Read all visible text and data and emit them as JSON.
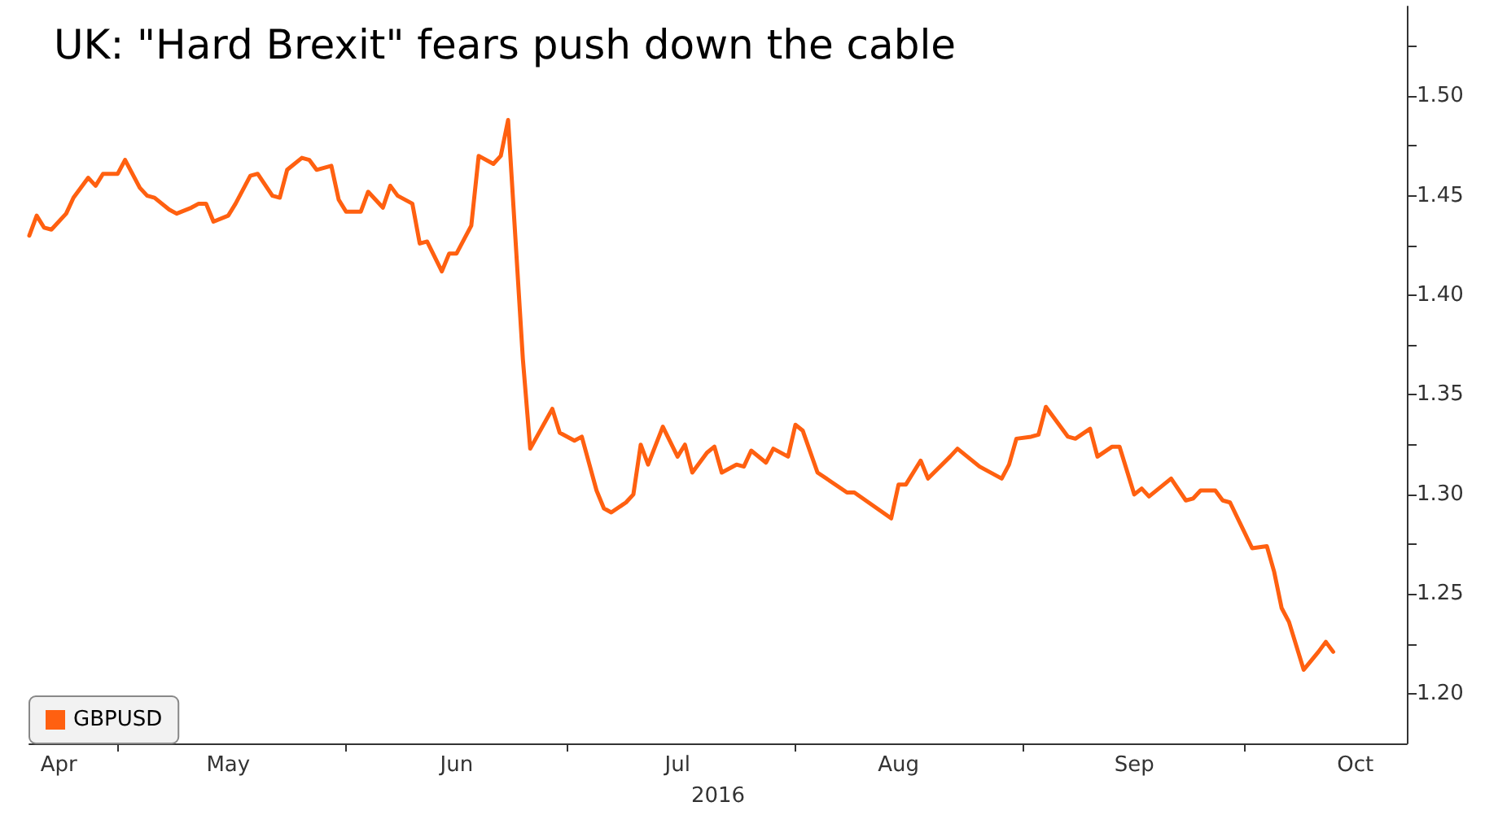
{
  "chart_data": {
    "type": "line",
    "title": "UK: \"Hard Brexit\" fears push down the cable",
    "xlabel": "2016",
    "x": [
      "2016-04-19",
      "2016-04-20",
      "2016-04-21",
      "2016-04-22",
      "2016-04-24",
      "2016-04-25",
      "2016-04-27",
      "2016-04-28",
      "2016-04-29",
      "2016-05-01",
      "2016-05-02",
      "2016-05-04",
      "2016-05-05",
      "2016-05-06",
      "2016-05-08",
      "2016-05-09",
      "2016-05-11",
      "2016-05-12",
      "2016-05-13",
      "2016-05-14",
      "2016-05-16",
      "2016-05-17",
      "2016-05-19",
      "2016-05-20",
      "2016-05-22",
      "2016-05-23",
      "2016-05-24",
      "2016-05-26",
      "2016-05-27",
      "2016-05-28",
      "2016-05-30",
      "2016-05-31",
      "2016-06-01",
      "2016-06-03",
      "2016-06-04",
      "2016-06-06",
      "2016-06-07",
      "2016-06-08",
      "2016-06-10",
      "2016-06-11",
      "2016-06-12",
      "2016-06-14",
      "2016-06-15",
      "2016-06-16",
      "2016-06-18",
      "2016-06-19",
      "2016-06-21",
      "2016-06-22",
      "2016-06-23",
      "2016-06-25",
      "2016-06-26",
      "2016-06-29",
      "2016-06-30",
      "2016-07-02",
      "2016-07-03",
      "2016-07-05",
      "2016-07-06",
      "2016-07-07",
      "2016-07-09",
      "2016-07-10",
      "2016-07-11",
      "2016-07-12",
      "2016-07-14",
      "2016-07-16",
      "2016-07-17",
      "2016-07-18",
      "2016-07-20",
      "2016-07-21",
      "2016-07-22",
      "2016-07-24",
      "2016-07-25",
      "2016-07-26",
      "2016-07-28",
      "2016-07-29",
      "2016-07-31",
      "2016-08-01",
      "2016-08-02",
      "2016-08-04",
      "2016-08-06",
      "2016-08-08",
      "2016-08-09",
      "2016-08-14",
      "2016-08-15",
      "2016-08-16",
      "2016-08-18",
      "2016-08-19",
      "2016-08-22",
      "2016-08-23",
      "2016-08-26",
      "2016-08-29",
      "2016-08-30",
      "2016-08-31",
      "2016-09-02",
      "2016-09-03",
      "2016-09-04",
      "2016-09-06",
      "2016-09-07",
      "2016-09-08",
      "2016-09-10",
      "2016-09-11",
      "2016-09-13",
      "2016-09-14",
      "2016-09-16",
      "2016-09-17",
      "2016-09-18",
      "2016-09-21",
      "2016-09-23",
      "2016-09-24",
      "2016-09-25",
      "2016-09-27",
      "2016-09-28",
      "2016-09-29",
      "2016-10-02",
      "2016-10-04",
      "2016-10-05",
      "2016-10-06",
      "2016-10-07",
      "2016-10-09",
      "2016-10-11",
      "2016-10-12",
      "2016-10-13"
    ],
    "series": [
      {
        "name": "GBPUSD",
        "color": "#ff6010",
        "values": [
          1.43,
          1.44,
          1.434,
          1.433,
          1.441,
          1.449,
          1.459,
          1.455,
          1.461,
          1.461,
          1.468,
          1.454,
          1.45,
          1.449,
          1.443,
          1.441,
          1.444,
          1.446,
          1.446,
          1.437,
          1.44,
          1.446,
          1.46,
          1.461,
          1.45,
          1.449,
          1.463,
          1.469,
          1.468,
          1.463,
          1.465,
          1.448,
          1.442,
          1.442,
          1.452,
          1.444,
          1.455,
          1.45,
          1.446,
          1.426,
          1.427,
          1.412,
          1.421,
          1.421,
          1.435,
          1.47,
          1.466,
          1.47,
          1.488,
          1.368,
          1.323,
          1.343,
          1.331,
          1.327,
          1.329,
          1.302,
          1.293,
          1.291,
          1.296,
          1.3,
          1.325,
          1.315,
          1.334,
          1.319,
          1.325,
          1.311,
          1.321,
          1.324,
          1.311,
          1.315,
          1.314,
          1.322,
          1.316,
          1.323,
          1.319,
          1.335,
          1.332,
          1.311,
          1.306,
          1.301,
          1.301,
          1.288,
          1.305,
          1.305,
          1.317,
          1.308,
          1.319,
          1.323,
          1.314,
          1.308,
          1.315,
          1.328,
          1.329,
          1.33,
          1.344,
          1.334,
          1.329,
          1.328,
          1.333,
          1.319,
          1.324,
          1.324,
          1.3,
          1.303,
          1.299,
          1.308,
          1.297,
          1.298,
          1.302,
          1.302,
          1.297,
          1.296,
          1.273,
          1.274,
          1.261,
          1.243,
          1.236,
          1.212,
          1.221,
          1.226,
          1.221
        ]
      }
    ],
    "xlim": [
      "2016-04-19",
      "2016-10-23"
    ],
    "xticks": [
      {
        "value": "2016-04-23",
        "label": "Apr"
      },
      {
        "value": "2016-05-01",
        "label": null
      },
      {
        "value": "2016-05-16",
        "label": "May"
      },
      {
        "value": "2016-06-01",
        "label": null
      },
      {
        "value": "2016-06-16",
        "label": "Jun"
      },
      {
        "value": "2016-07-01",
        "label": null
      },
      {
        "value": "2016-07-16",
        "label": "Jul"
      },
      {
        "value": "2016-08-01",
        "label": null
      },
      {
        "value": "2016-08-15",
        "label": "Aug"
      },
      {
        "value": "2016-09-01",
        "label": null
      },
      {
        "value": "2016-09-16",
        "label": "Sep"
      },
      {
        "value": "2016-10-01",
        "label": null
      },
      {
        "value": "2016-10-16",
        "label": "Oct"
      }
    ],
    "ylim": [
      1.175,
      1.545
    ],
    "yticks": [
      {
        "value": 1.2,
        "label": "1.20"
      },
      {
        "value": 1.225,
        "label": null
      },
      {
        "value": 1.25,
        "label": "1.25"
      },
      {
        "value": 1.275,
        "label": null
      },
      {
        "value": 1.3,
        "label": "1.30"
      },
      {
        "value": 1.325,
        "label": null
      },
      {
        "value": 1.35,
        "label": "1.35"
      },
      {
        "value": 1.375,
        "label": null
      },
      {
        "value": 1.4,
        "label": "1.40"
      },
      {
        "value": 1.425,
        "label": null
      },
      {
        "value": 1.45,
        "label": "1.45"
      },
      {
        "value": 1.475,
        "label": null
      },
      {
        "value": 1.5,
        "label": "1.50"
      },
      {
        "value": 1.525,
        "label": null
      }
    ],
    "legend": "bottom left",
    "grid": false
  }
}
